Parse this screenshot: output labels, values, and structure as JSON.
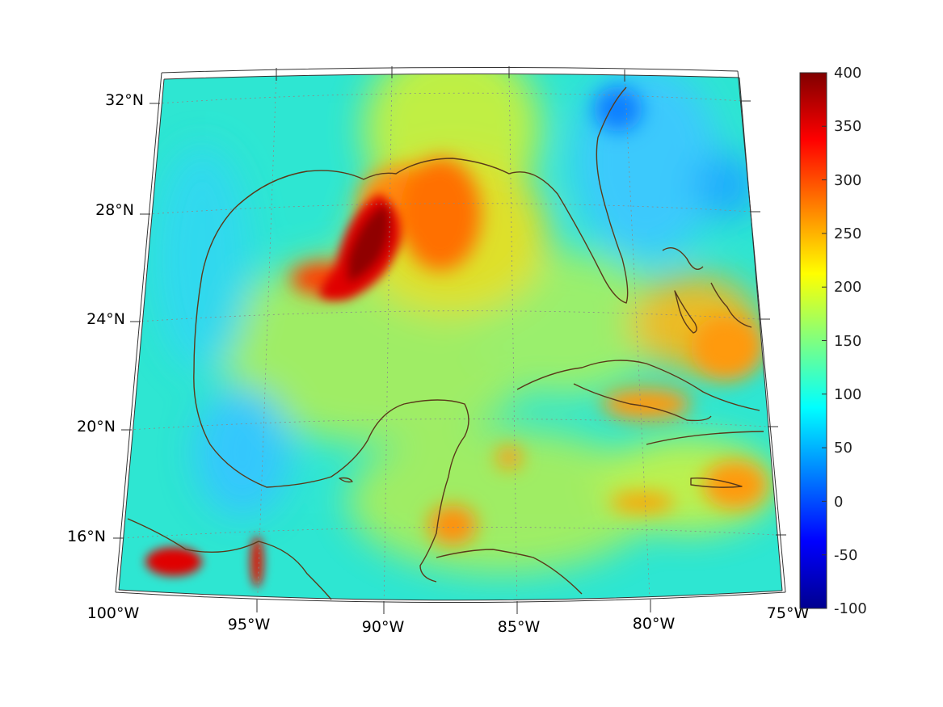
{
  "map": {
    "latitude_labels": [
      "32°N",
      "28°N",
      "24°N",
      "20°N",
      "16°N"
    ],
    "longitude_labels": [
      "100°W",
      "95°W",
      "90°W",
      "85°W",
      "80°W",
      "75°W"
    ],
    "colormap": "jet",
    "background_level": "cyan-green (about 100–150)"
  },
  "colorbar": {
    "ticks": [
      "400",
      "350",
      "300",
      "250",
      "200",
      "150",
      "100",
      "50",
      "0",
      "-50",
      "-100"
    ],
    "min": -100,
    "max": 400,
    "colors": [
      "#00008f",
      "#0000ff",
      "#00ffff",
      "#ffff00",
      "#ff0000",
      "#800000"
    ]
  },
  "coastline_color": "#5a3a1a"
}
